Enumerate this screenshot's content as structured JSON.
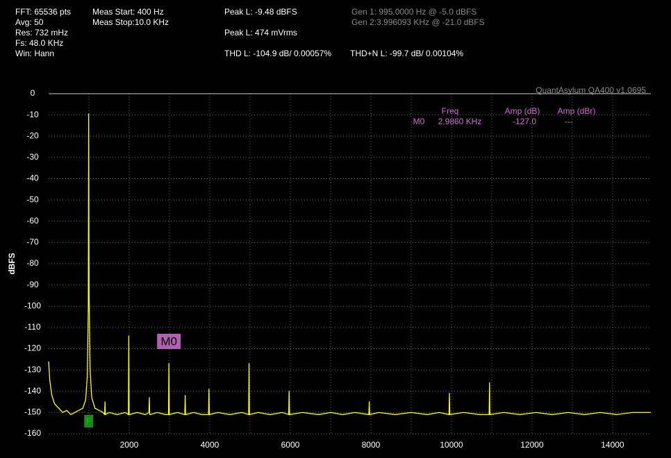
{
  "header": {
    "col1": [
      "FFT: 65536 pts",
      "Avg: 50",
      "Res: 732 mHz",
      "Fs: 48.0 KHz",
      "Win: Hann"
    ],
    "col2": [
      "Meas Start: 400 Hz",
      "Meas Stop:10.0 KHz"
    ],
    "peak": [
      "Peak L: -9.48 dBFS",
      "Peak L: 474 mVrms"
    ],
    "thd": [
      "THD L: -104.9 dB/ 0.00057%",
      "THD+N L: -99.7 dB/ 0.00104%"
    ],
    "gen": [
      "Gen 1: 995.0000 Hz @ -5.0  dBFS",
      "Gen 2:3.996093 KHz @ -21.0  dBFS"
    ]
  },
  "watermark": "QuantAsylum QA400 v1.0695",
  "marker_table": {
    "columns": [
      "Freq",
      "Amp (dB)",
      "Amp (dBr)"
    ],
    "rows": [
      [
        "M0",
        "2.9860 KHz",
        "-127.0",
        "---"
      ]
    ]
  },
  "chart_data": {
    "type": "line",
    "y_label": "dBFS",
    "color": "#ffff00",
    "grid": true,
    "xlim": [
      0,
      14950
    ],
    "ylim": [
      -160,
      0
    ],
    "xticks": [
      2000,
      4000,
      6000,
      8000,
      10000,
      12000,
      14000
    ],
    "xminor": [
      1000,
      3000,
      5000,
      7000,
      9000,
      11000,
      13000
    ],
    "yticks": [
      0,
      -10,
      -20,
      -30,
      -40,
      -50,
      -60,
      -70,
      -80,
      -90,
      -100,
      -110,
      -120,
      -130,
      -140,
      -150,
      -160
    ],
    "x": [
      0,
      30,
      80,
      150,
      250,
      350,
      450,
      550,
      650,
      750,
      850,
      920,
      960,
      985,
      995,
      1005,
      1030,
      1070,
      1150,
      1250,
      1350,
      1390,
      1400,
      1410,
      1500,
      1700,
      1900,
      1980,
      1990,
      2000,
      2200,
      2400,
      2490,
      2500,
      2510,
      2700,
      2900,
      2976,
      2986,
      2996,
      3200,
      3380,
      3390,
      3400,
      3600,
      3800,
      3970,
      3980,
      3990,
      4200,
      4500,
      4800,
      4965,
      4975,
      4985,
      5200,
      5500,
      5800,
      5960,
      5970,
      5980,
      6300,
      6700,
      7000,
      7300,
      7600,
      7950,
      7960,
      7970,
      8200,
      8600,
      9000,
      9400,
      9700,
      9940,
      9950,
      9960,
      10300,
      10700,
      10935,
      10945,
      10955,
      11300,
      11700,
      12100,
      12500,
      12900,
      13300,
      13700,
      14100,
      14500,
      14950
    ],
    "values": [
      -126,
      -135,
      -142,
      -146,
      -148,
      -150,
      -149,
      -151,
      -150,
      -149,
      -148,
      -144,
      -133,
      -100,
      -9.48,
      -95,
      -130,
      -143,
      -148,
      -149,
      -150,
      -151,
      -145,
      -151,
      -150,
      -151,
      -150,
      -151,
      -114,
      -151,
      -150,
      -151,
      -150,
      -143,
      -151,
      -150,
      -151,
      -151,
      -127,
      -151,
      -150,
      -151,
      -142,
      -151,
      -150,
      -151,
      -151,
      -139,
      -151,
      -150,
      -151,
      -150,
      -151,
      -127,
      -151,
      -150,
      -151,
      -150,
      -151,
      -140,
      -151,
      -150,
      -151,
      -150,
      -151,
      -150,
      -151,
      -145,
      -151,
      -150,
      -151,
      -150,
      -151,
      -150,
      -151,
      -141,
      -151,
      -150,
      -151,
      -151,
      -136,
      -151,
      -150,
      -151,
      -150,
      -151,
      -150,
      -151,
      -150,
      -151,
      -150,
      -150
    ],
    "markers": [
      {
        "label": "M0",
        "x": 2986,
        "color": "#b060b0"
      },
      {
        "label": "F",
        "x": 995,
        "color": "#1a8a1a"
      }
    ]
  }
}
